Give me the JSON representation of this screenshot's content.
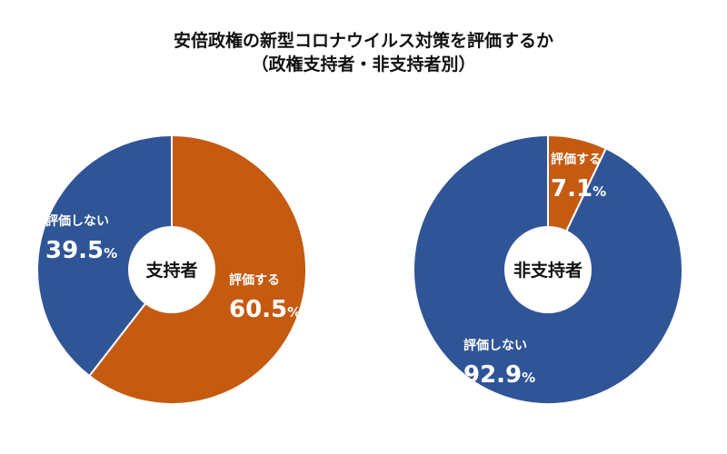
{
  "chart_data": [
    {
      "type": "pie",
      "variant": "donut",
      "title": "安倍政権の新型コロナウイルス対策を評価するか",
      "subtitle": "（政権支持者・非支持者別）",
      "center_label": "支持者",
      "slices": [
        {
          "label": "評価する",
          "value": 60.5,
          "display": "60.5",
          "color": "#C55A11"
        },
        {
          "label": "評価しない",
          "value": 39.5,
          "display": "39.5",
          "color": "#2F5597"
        }
      ]
    },
    {
      "type": "pie",
      "variant": "donut",
      "center_label": "非支持者",
      "slices": [
        {
          "label": "評価する",
          "value": 7.1,
          "display": "7.1",
          "color": "#C55A11"
        },
        {
          "label": "評価しない",
          "value": 92.9,
          "display": "92.9",
          "color": "#2F5597"
        }
      ]
    }
  ],
  "unit": "%"
}
